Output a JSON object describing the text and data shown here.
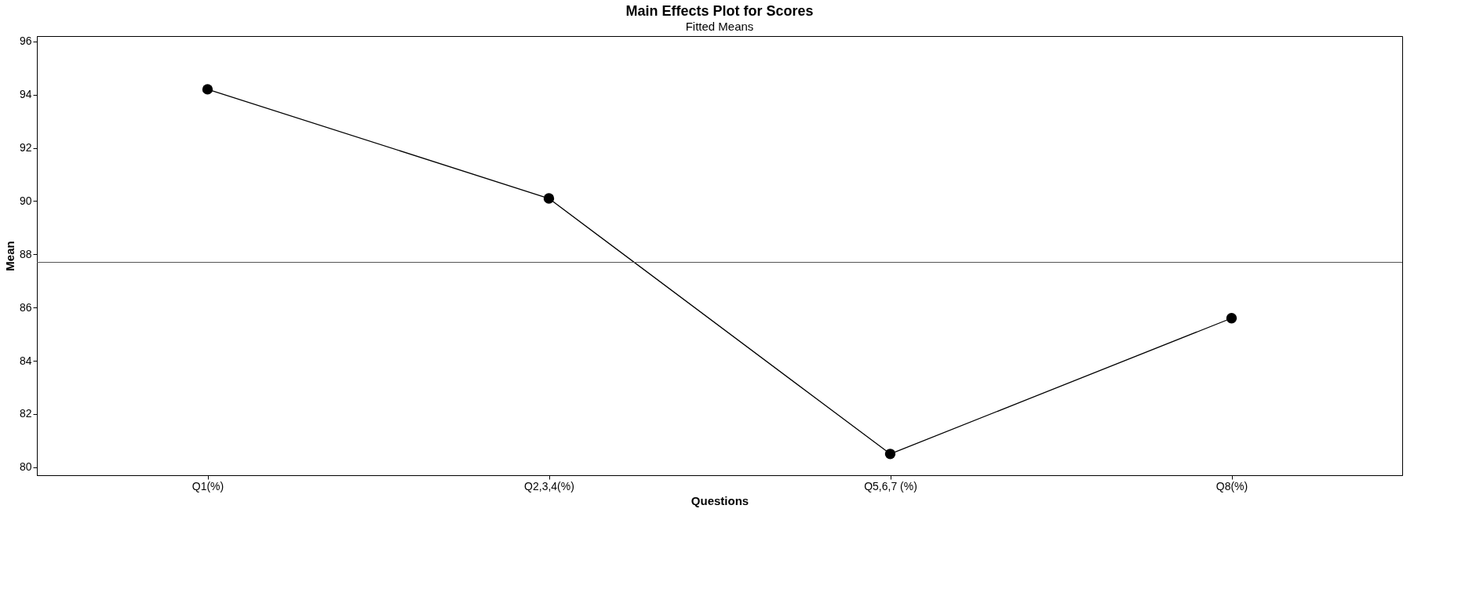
{
  "chart_data": {
    "type": "line",
    "title": "Main Effects Plot for Scores",
    "subtitle": "Fitted Means",
    "xlabel": "Questions",
    "ylabel": "Mean",
    "categories": [
      "Q1(%)",
      "Q2,3,4(%)",
      "Q5,6,7 (%)",
      "Q8(%)"
    ],
    "series": [
      {
        "color": "#000000",
        "values": [
          94.2,
          90.1,
          80.5,
          85.6
        ]
      }
    ],
    "ylim": [
      79.7,
      96.2
    ],
    "yticks": [
      80,
      82,
      84,
      86,
      88,
      90,
      92,
      94,
      96
    ],
    "ref_lines": [
      {
        "axis": "y",
        "value": 87.7,
        "color": "#555555"
      }
    ],
    "marker": "circle",
    "line_style": "solid",
    "grid": false
  }
}
